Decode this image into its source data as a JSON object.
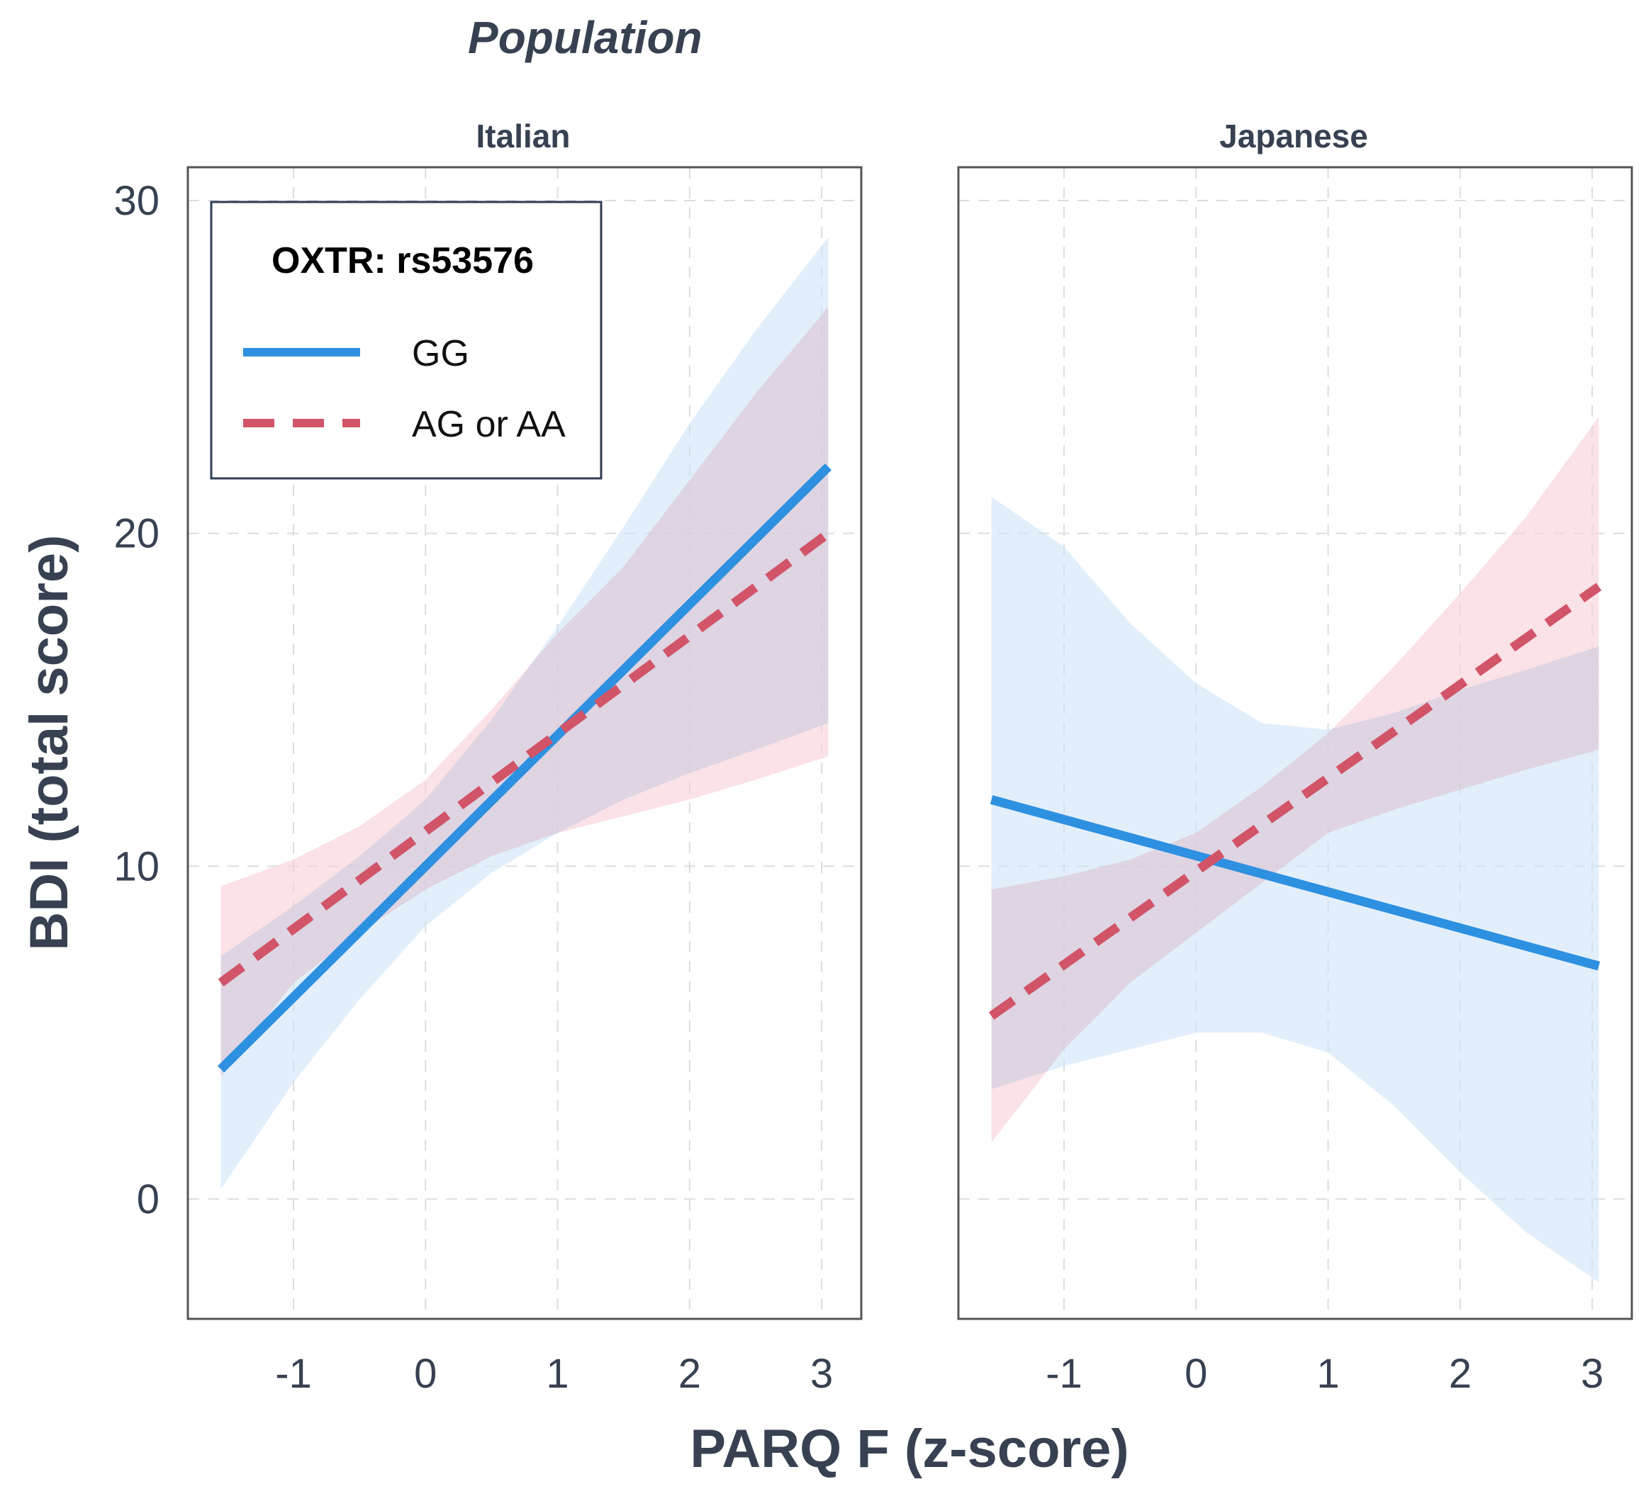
{
  "colors": {
    "gg": "#2e90e0",
    "ag_aa": "#d15468",
    "gg_band": "#cfe5f8",
    "ag_aa_band": "#f7cfd6",
    "text": "#374151",
    "panel_border": "#555555",
    "grid": "#dddddd"
  },
  "chart_data": {
    "type": "line",
    "title": "Population",
    "xlabel": "PARQ F (z-score)",
    "ylabel": "BDI (total score)",
    "xlim": [
      -1.8,
      3.3
    ],
    "ylim": [
      -3.6,
      31
    ],
    "xticks": [
      -1,
      0,
      1,
      2,
      3
    ],
    "yticks": [
      0,
      10,
      20,
      30
    ],
    "grid": true,
    "legend": {
      "title": "OXTR: rs53576",
      "position": "top-left",
      "entries": [
        {
          "label": "GG",
          "series": "GG",
          "style": "solid"
        },
        {
          "label": "AG or AA",
          "series": "AG or AA",
          "style": "dashed"
        }
      ]
    },
    "panels": [
      {
        "label": "Italian",
        "series": [
          {
            "name": "GG",
            "x": [
              -1.55,
              3.05
            ],
            "y": [
              3.9,
              22.0
            ],
            "band_x": [
              -1.55,
              -1.0,
              -0.5,
              0,
              0.5,
              1.0,
              1.5,
              2.0,
              2.5,
              3.05
            ],
            "band_lower": [
              0.3,
              3.5,
              6.0,
              8.2,
              9.8,
              11.0,
              12.0,
              12.8,
              13.5,
              14.3
            ],
            "band_upper": [
              7.3,
              8.8,
              10.3,
              12.0,
              14.4,
              17.2,
              20.2,
              23.3,
              26.1,
              28.9
            ]
          },
          {
            "name": "AG or AA",
            "x": [
              -1.55,
              3.05
            ],
            "y": [
              6.5,
              20.0
            ],
            "band_x": [
              -1.55,
              -1.0,
              -0.5,
              0,
              0.5,
              1.0,
              1.5,
              2.0,
              2.5,
              3.05
            ],
            "band_lower": [
              3.7,
              6.5,
              8.0,
              9.3,
              10.3,
              11.0,
              11.5,
              12.0,
              12.6,
              13.3
            ],
            "band_upper": [
              9.4,
              10.2,
              11.2,
              12.6,
              14.7,
              17.0,
              19.0,
              21.6,
              24.2,
              26.8
            ]
          }
        ]
      },
      {
        "label": "Japanese",
        "series": [
          {
            "name": "GG",
            "x": [
              -1.55,
              3.05
            ],
            "y": [
              12.0,
              7.0
            ],
            "band_x": [
              -1.55,
              -1.0,
              -0.5,
              0,
              0.5,
              1.0,
              1.5,
              2.0,
              2.5,
              3.05
            ],
            "band_lower": [
              3.3,
              4.0,
              4.5,
              5.0,
              5.0,
              4.4,
              2.8,
              0.8,
              -1.0,
              -2.5
            ],
            "band_upper": [
              21.1,
              19.6,
              17.3,
              15.5,
              14.3,
              14.1,
              14.6,
              15.3,
              15.9,
              16.6
            ]
          },
          {
            "name": "AG or AA",
            "x": [
              -1.55,
              3.05
            ],
            "y": [
              5.5,
              18.4
            ],
            "band_x": [
              -1.55,
              -1.0,
              -0.5,
              0,
              0.5,
              1.0,
              1.5,
              2.0,
              2.5,
              3.05
            ],
            "band_lower": [
              1.7,
              4.5,
              6.5,
              8.0,
              9.5,
              11.0,
              11.7,
              12.3,
              12.9,
              13.5
            ],
            "band_upper": [
              9.3,
              9.7,
              10.2,
              11.0,
              12.4,
              14.0,
              16.0,
              18.2,
              20.5,
              23.5
            ]
          }
        ]
      }
    ]
  }
}
